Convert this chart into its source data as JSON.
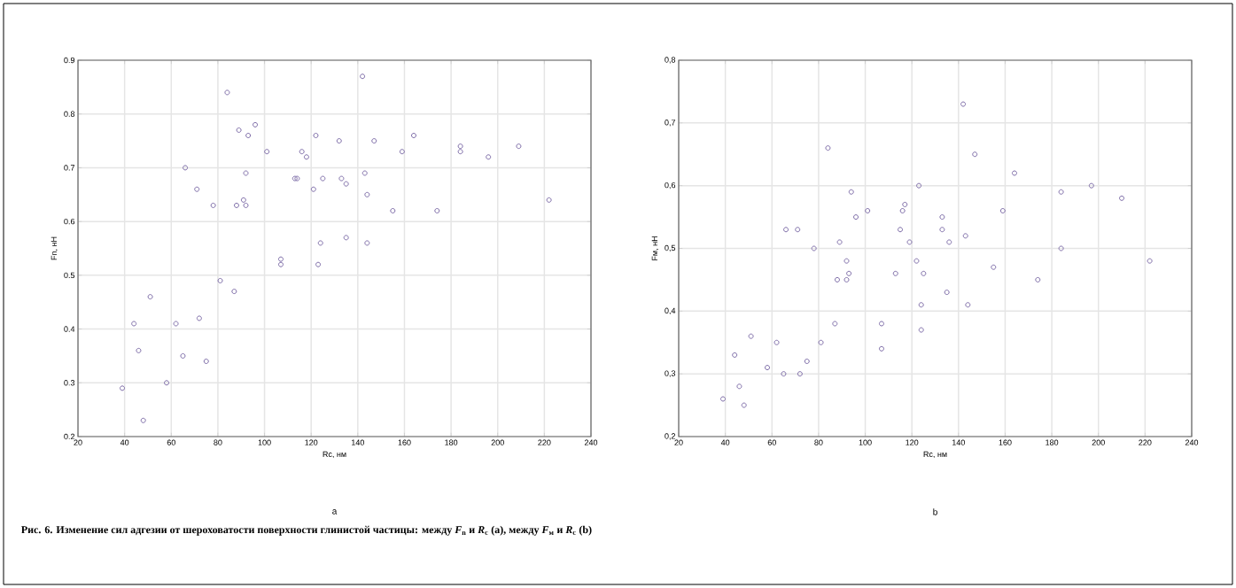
{
  "chart_data": [
    {
      "type": "scatter",
      "xlabel": "Rc, нм",
      "ylabel": "Fn, нН",
      "color": "#7b6aa6",
      "marker": "circle",
      "grid": true,
      "xlim": [
        20,
        240
      ],
      "xticks": [
        20,
        40,
        60,
        80,
        100,
        120,
        140,
        160,
        180,
        200,
        220,
        240
      ],
      "ylim": [
        0.2,
        0.9
      ],
      "yticks": [
        0.2,
        0.3,
        0.4,
        0.5,
        0.6,
        0.7,
        0.8,
        0.9
      ],
      "x": [
        39,
        44,
        46,
        48,
        51,
        58,
        62,
        65,
        66,
        71,
        72,
        75,
        78,
        81,
        84,
        87,
        88,
        89,
        91,
        92,
        92,
        93,
        96,
        101,
        107,
        107,
        113,
        114,
        116,
        118,
        121,
        122,
        123,
        124,
        125,
        132,
        133,
        135,
        135,
        142,
        143,
        144,
        144,
        147,
        155,
        159,
        164,
        174,
        184,
        184,
        196,
        209,
        222
      ],
      "values": [
        0.29,
        0.41,
        0.36,
        0.23,
        0.46,
        0.3,
        0.41,
        0.35,
        0.7,
        0.66,
        0.42,
        0.34,
        0.63,
        0.49,
        0.84,
        0.47,
        0.63,
        0.77,
        0.64,
        0.63,
        0.69,
        0.76,
        0.78,
        0.73,
        0.53,
        0.52,
        0.68,
        0.68,
        0.73,
        0.72,
        0.66,
        0.76,
        0.52,
        0.56,
        0.68,
        0.75,
        0.68,
        0.67,
        0.57,
        0.87,
        0.69,
        0.65,
        0.56,
        0.75,
        0.62,
        0.73,
        0.76,
        0.62,
        0.74,
        0.73,
        0.72,
        0.74,
        0.64
      ],
      "annotations": [
        "a",
        "**Рис. 6. Изменение сил адгезии от шероховатости поверхности глинистой частицы: между *F*$_{n}$ и *R*$_{c}$ (a), между *F*$_{м}$ и *R*$_{c}$ (b)**"
      ]
    },
    {
      "type": "scatter",
      "xlabel": "Rc, нм",
      "ylabel": "Fм, нН",
      "color": "#7b6aa6",
      "marker": "circle",
      "grid": true,
      "xlim": [
        20,
        240
      ],
      "xticks": [
        20,
        40,
        60,
        80,
        100,
        120,
        140,
        160,
        180,
        200,
        220,
        240
      ],
      "ylim": [
        0.2,
        0.8
      ],
      "yticks": [
        {
          "value": 0.2,
          "label": "0,2"
        },
        {
          "value": 0.3,
          "label": "0,3"
        },
        {
          "value": 0.4,
          "label": "0,4"
        },
        {
          "value": 0.5,
          "label": "0,5"
        },
        {
          "value": 0.6,
          "label": "0,6"
        },
        {
          "value": 0.7,
          "label": "0,7"
        },
        {
          "value": 0.8,
          "label": "0,8"
        }
      ],
      "x": [
        39,
        44,
        46,
        48,
        51,
        58,
        62,
        65,
        66,
        71,
        72,
        75,
        78,
        81,
        84,
        87,
        88,
        89,
        92,
        92,
        93,
        94,
        96,
        101,
        107,
        107,
        113,
        115,
        116,
        117,
        119,
        122,
        123,
        124,
        124,
        125,
        133,
        133,
        135,
        136,
        142,
        143,
        144,
        147,
        155,
        159,
        164,
        174,
        184,
        184,
        197,
        210,
        222
      ],
      "values": [
        0.26,
        0.33,
        0.28,
        0.25,
        0.36,
        0.31,
        0.35,
        0.3,
        0.53,
        0.53,
        0.3,
        0.32,
        0.5,
        0.35,
        0.66,
        0.38,
        0.45,
        0.51,
        0.45,
        0.48,
        0.46,
        0.59,
        0.55,
        0.56,
        0.38,
        0.34,
        0.46,
        0.53,
        0.56,
        0.57,
        0.51,
        0.48,
        0.6,
        0.37,
        0.41,
        0.46,
        0.55,
        0.53,
        0.43,
        0.51,
        0.73,
        0.52,
        0.41,
        0.65,
        0.47,
        0.56,
        0.62,
        0.45,
        0.59,
        0.5,
        0.6,
        0.58,
        0.48
      ],
      "annotations": [
        "b"
      ]
    }
  ]
}
